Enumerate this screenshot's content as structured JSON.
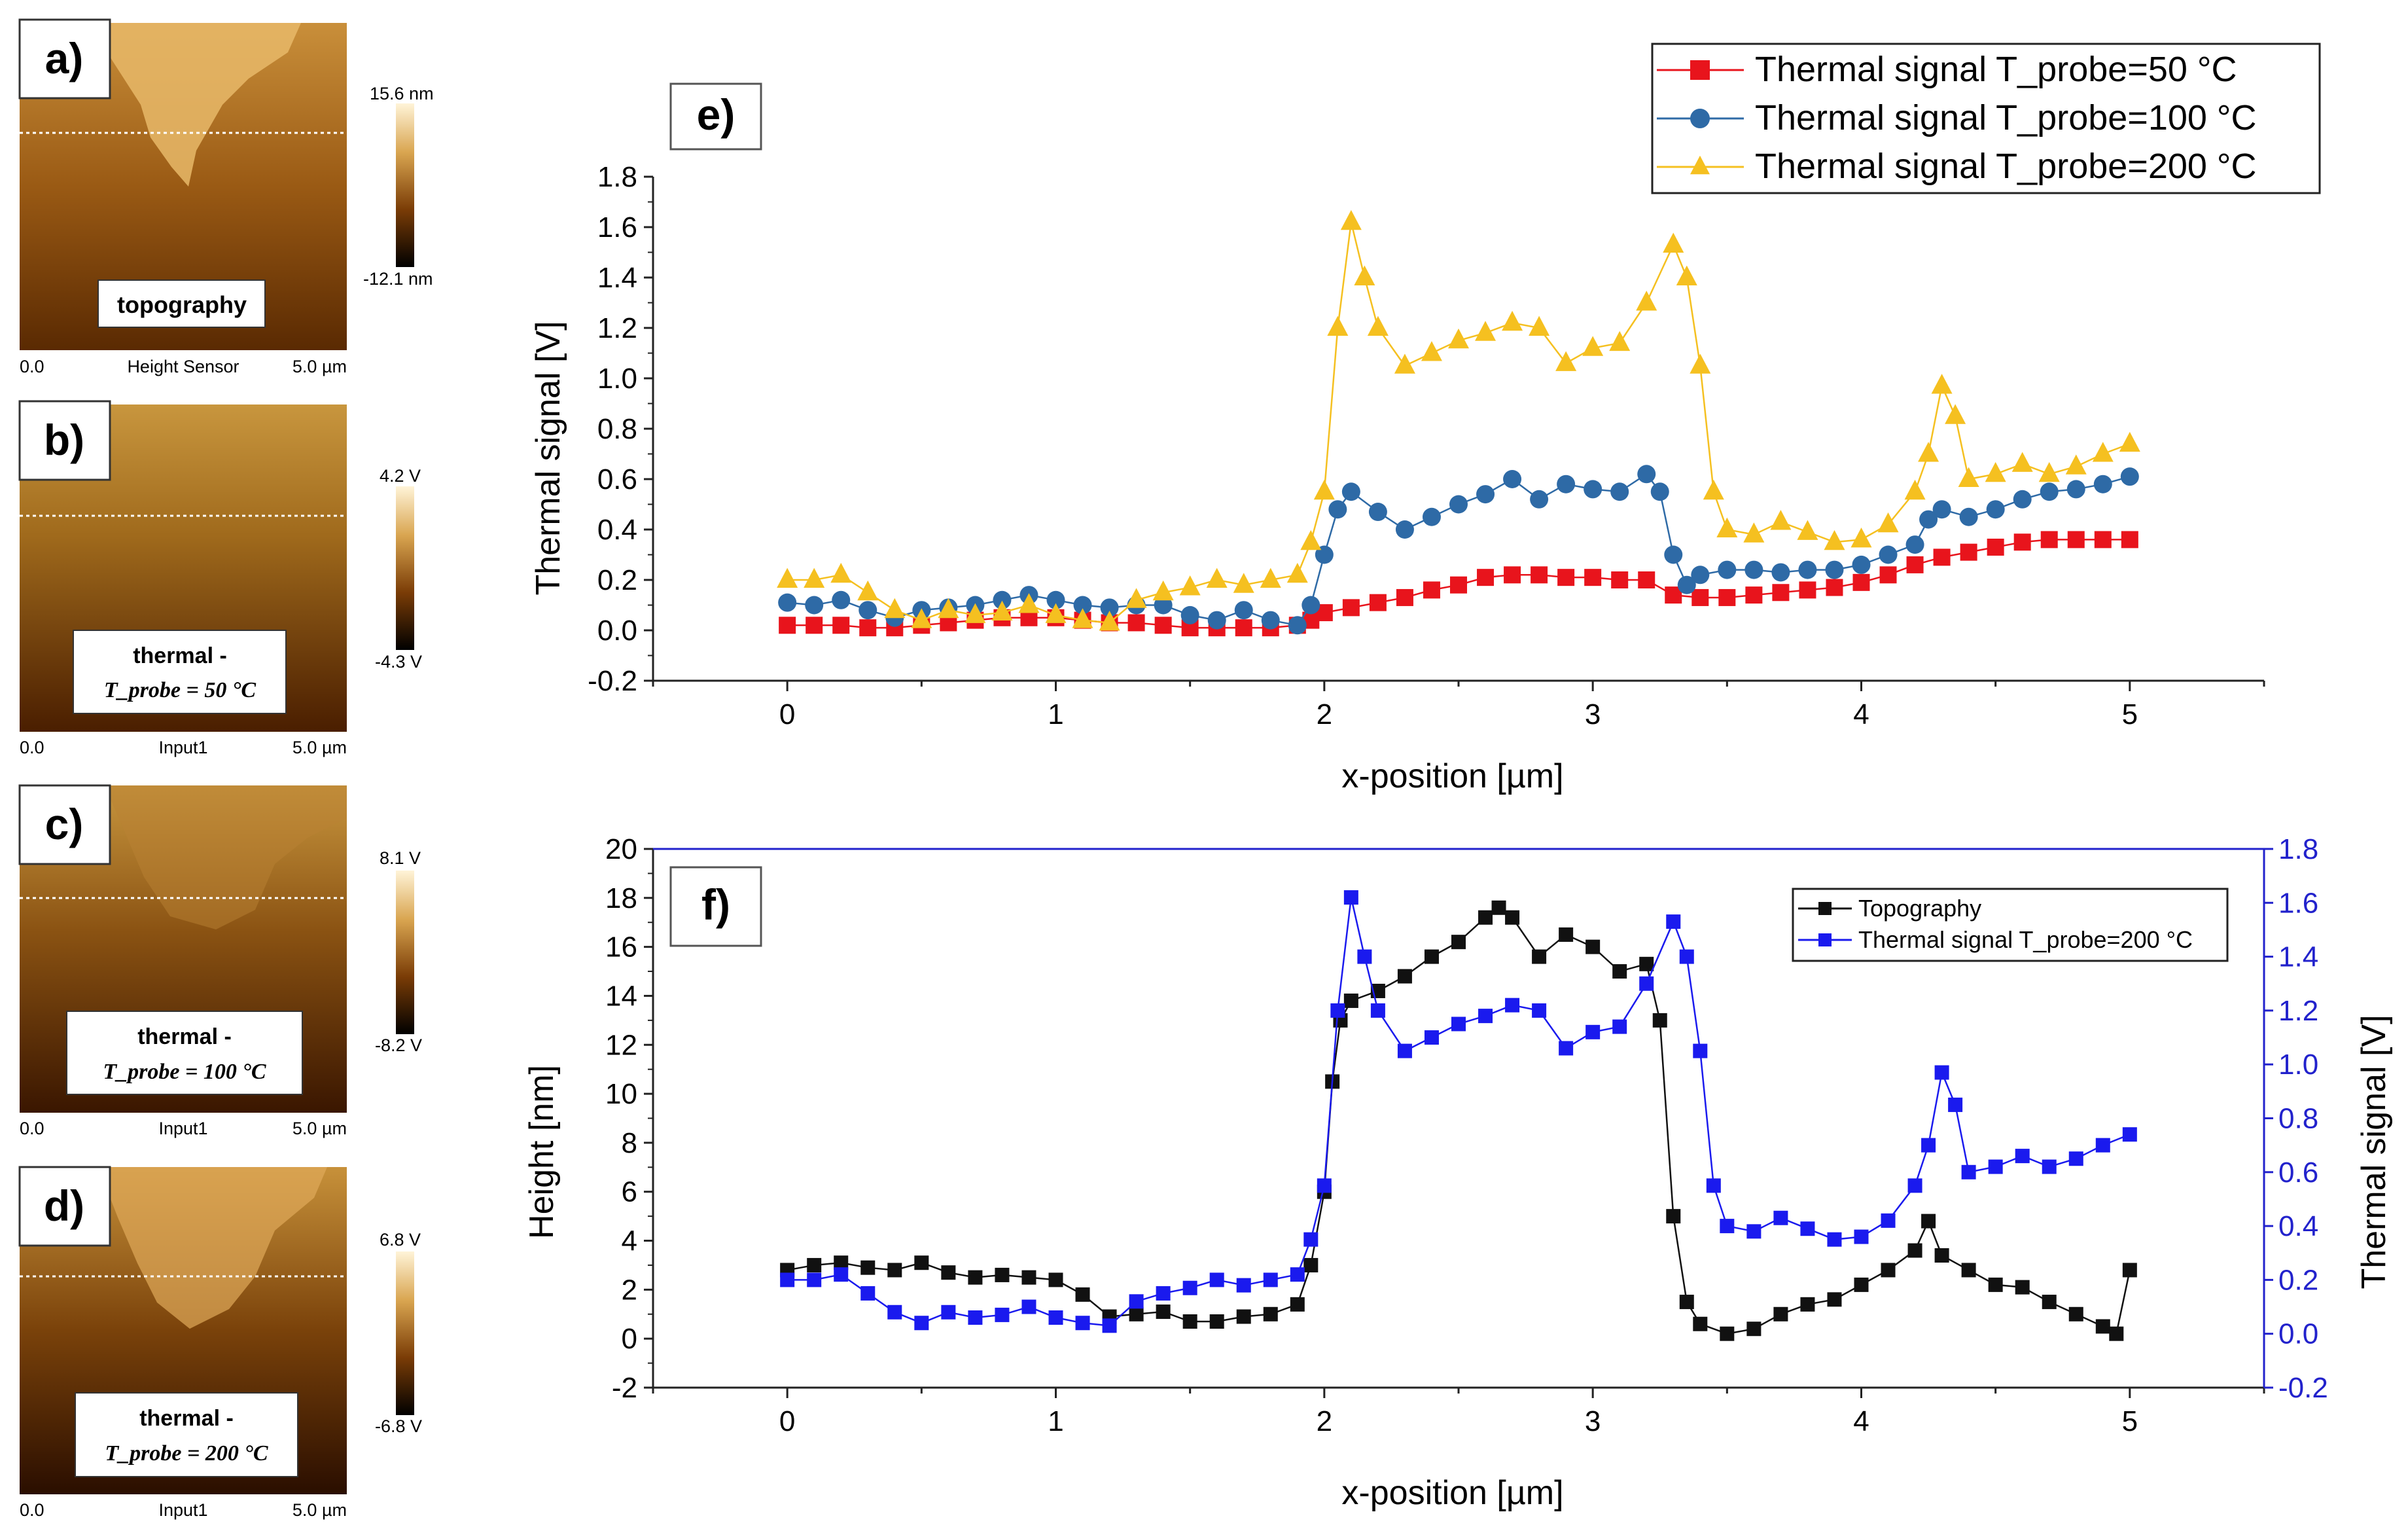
{
  "panels": {
    "a": {
      "label": "a)",
      "caption": "topography",
      "colorbar_max": "15.6 nm",
      "colorbar_min": "-12.1 nm",
      "axis_left": "0.0",
      "axis_mid": "Height Sensor",
      "axis_right": "5.0 µm"
    },
    "b": {
      "label": "b)",
      "caption_line1": "thermal -",
      "caption_line2": "T_probe = 50 °C",
      "colorbar_max": "4.2 V",
      "colorbar_min": "-4.3 V",
      "axis_left": "0.0",
      "axis_mid": "Input1",
      "axis_right": "5.0 µm"
    },
    "c": {
      "label": "c)",
      "caption_line1": "thermal -",
      "caption_line2": "T_probe = 100 °C",
      "colorbar_max": "8.1 V",
      "colorbar_min": "-8.2 V",
      "axis_left": "0.0",
      "axis_mid": "Input1",
      "axis_right": "5.0 µm"
    },
    "d": {
      "label": "d)",
      "caption_line1": "thermal -",
      "caption_line2": "T_probe = 200 °C",
      "colorbar_max": "6.8 V",
      "colorbar_min": "-6.8 V",
      "axis_left": "0.0",
      "axis_mid": "Input1",
      "axis_right": "5.0 µm"
    }
  },
  "colors": {
    "s50": "#e8141c",
    "s100": "#2e6aa6",
    "s200": "#f5c020",
    "topo": "#111111",
    "blue": "#1a1aee",
    "axis_right": "#2222cc"
  },
  "chart_data": [
    {
      "id": "e",
      "panel_label": "e)",
      "type": "scatter",
      "title": "",
      "xlabel": "x-position [µm]",
      "ylabel": "Thermal signal [V]",
      "xlim": [
        -0.5,
        5.5
      ],
      "ylim": [
        -0.2,
        1.8
      ],
      "xticks": [
        "0",
        "1",
        "2",
        "3",
        "4",
        "5"
      ],
      "yticks": [
        "-0.2",
        "0.0",
        "0.2",
        "0.4",
        "0.6",
        "0.8",
        "1.0",
        "1.2",
        "1.4",
        "1.6",
        "1.8"
      ],
      "legend": "top-right",
      "series": [
        {
          "name": "Thermal signal T_probe=50 °C",
          "marker": "square",
          "color": "#e8141c",
          "x": [
            0,
            0.1,
            0.2,
            0.3,
            0.4,
            0.5,
            0.6,
            0.7,
            0.8,
            0.9,
            1.0,
            1.1,
            1.2,
            1.3,
            1.4,
            1.5,
            1.6,
            1.7,
            1.8,
            1.9,
            1.95,
            2.0,
            2.1,
            2.2,
            2.3,
            2.4,
            2.5,
            2.6,
            2.7,
            2.8,
            2.9,
            3.0,
            3.1,
            3.2,
            3.3,
            3.4,
            3.5,
            3.6,
            3.7,
            3.8,
            3.9,
            4.0,
            4.1,
            4.2,
            4.3,
            4.4,
            4.5,
            4.6,
            4.7,
            4.8,
            4.9,
            5.0
          ],
          "y": [
            0.02,
            0.02,
            0.02,
            0.01,
            0.01,
            0.02,
            0.03,
            0.04,
            0.05,
            0.05,
            0.05,
            0.04,
            0.03,
            0.03,
            0.02,
            0.01,
            0.01,
            0.01,
            0.01,
            0.02,
            0.04,
            0.07,
            0.09,
            0.11,
            0.13,
            0.16,
            0.18,
            0.21,
            0.22,
            0.22,
            0.21,
            0.21,
            0.2,
            0.2,
            0.14,
            0.13,
            0.13,
            0.14,
            0.15,
            0.16,
            0.17,
            0.19,
            0.22,
            0.26,
            0.29,
            0.31,
            0.33,
            0.35,
            0.36,
            0.36,
            0.36,
            0.36
          ]
        },
        {
          "name": "Thermal signal T_probe=100 °C",
          "marker": "circle",
          "color": "#2e6aa6",
          "x": [
            0,
            0.1,
            0.2,
            0.3,
            0.4,
            0.5,
            0.6,
            0.7,
            0.8,
            0.9,
            1.0,
            1.1,
            1.2,
            1.3,
            1.4,
            1.5,
            1.6,
            1.7,
            1.8,
            1.9,
            1.95,
            2.0,
            2.05,
            2.1,
            2.2,
            2.3,
            2.4,
            2.5,
            2.6,
            2.7,
            2.8,
            2.9,
            3.0,
            3.1,
            3.2,
            3.25,
            3.3,
            3.35,
            3.4,
            3.5,
            3.6,
            3.7,
            3.8,
            3.9,
            4.0,
            4.1,
            4.2,
            4.25,
            4.3,
            4.4,
            4.5,
            4.6,
            4.7,
            4.8,
            4.9,
            5.0
          ],
          "y": [
            0.11,
            0.1,
            0.12,
            0.08,
            0.05,
            0.08,
            0.09,
            0.1,
            0.12,
            0.14,
            0.12,
            0.1,
            0.09,
            0.1,
            0.1,
            0.06,
            0.04,
            0.08,
            0.04,
            0.02,
            0.1,
            0.3,
            0.48,
            0.55,
            0.47,
            0.4,
            0.45,
            0.5,
            0.54,
            0.6,
            0.52,
            0.58,
            0.56,
            0.55,
            0.62,
            0.55,
            0.3,
            0.18,
            0.22,
            0.24,
            0.24,
            0.23,
            0.24,
            0.24,
            0.26,
            0.3,
            0.34,
            0.44,
            0.48,
            0.45,
            0.48,
            0.52,
            0.55,
            0.56,
            0.58,
            0.61
          ]
        },
        {
          "name": "Thermal signal T_probe=200 °C",
          "marker": "triangle",
          "color": "#f5c020",
          "x": [
            0,
            0.1,
            0.2,
            0.3,
            0.4,
            0.5,
            0.6,
            0.7,
            0.8,
            0.9,
            1.0,
            1.1,
            1.2,
            1.3,
            1.4,
            1.5,
            1.6,
            1.7,
            1.8,
            1.9,
            1.95,
            2.0,
            2.05,
            2.1,
            2.15,
            2.2,
            2.3,
            2.4,
            2.5,
            2.6,
            2.7,
            2.8,
            2.9,
            3.0,
            3.1,
            3.2,
            3.3,
            3.35,
            3.4,
            3.45,
            3.5,
            3.6,
            3.7,
            3.8,
            3.9,
            4.0,
            4.1,
            4.2,
            4.25,
            4.3,
            4.35,
            4.4,
            4.5,
            4.6,
            4.7,
            4.8,
            4.9,
            5.0
          ],
          "y": [
            0.2,
            0.2,
            0.22,
            0.15,
            0.08,
            0.04,
            0.08,
            0.06,
            0.07,
            0.1,
            0.06,
            0.04,
            0.03,
            0.12,
            0.15,
            0.17,
            0.2,
            0.18,
            0.2,
            0.22,
            0.35,
            0.55,
            1.2,
            1.62,
            1.4,
            1.2,
            1.05,
            1.1,
            1.15,
            1.18,
            1.22,
            1.2,
            1.06,
            1.12,
            1.14,
            1.3,
            1.53,
            1.4,
            1.05,
            0.55,
            0.4,
            0.38,
            0.43,
            0.39,
            0.35,
            0.36,
            0.42,
            0.55,
            0.7,
            0.97,
            0.85,
            0.6,
            0.62,
            0.66,
            0.62,
            0.65,
            0.7,
            0.74
          ]
        }
      ]
    },
    {
      "id": "f",
      "panel_label": "f)",
      "type": "scatter",
      "title": "",
      "xlabel": "x-position [µm]",
      "ylabel": "Height [nm]",
      "ylabel_right": "Thermal signal [V]",
      "xlim": [
        -0.5,
        5.5
      ],
      "ylim": [
        -2,
        20
      ],
      "ylim_right": [
        -0.2,
        1.8
      ],
      "xticks": [
        "0",
        "1",
        "2",
        "3",
        "4",
        "5"
      ],
      "yticks": [
        "-2",
        "0",
        "2",
        "4",
        "6",
        "8",
        "10",
        "12",
        "14",
        "16",
        "18",
        "20"
      ],
      "yticks_right": [
        "-0.2",
        "0.0",
        "0.2",
        "0.4",
        "0.6",
        "0.8",
        "1.0",
        "1.2",
        "1.4",
        "1.6",
        "1.8"
      ],
      "legend": "top-right",
      "series": [
        {
          "name": "Topography",
          "marker": "square",
          "color": "#111111",
          "axis": "left",
          "x": [
            0,
            0.1,
            0.2,
            0.3,
            0.4,
            0.5,
            0.6,
            0.7,
            0.8,
            0.9,
            1.0,
            1.1,
            1.2,
            1.3,
            1.4,
            1.5,
            1.6,
            1.7,
            1.8,
            1.9,
            1.95,
            2.0,
            2.03,
            2.06,
            2.1,
            2.2,
            2.3,
            2.4,
            2.5,
            2.6,
            2.65,
            2.7,
            2.8,
            2.9,
            3.0,
            3.1,
            3.2,
            3.25,
            3.3,
            3.35,
            3.4,
            3.5,
            3.6,
            3.7,
            3.8,
            3.9,
            4.0,
            4.1,
            4.2,
            4.25,
            4.3,
            4.4,
            4.5,
            4.6,
            4.7,
            4.8,
            4.9,
            4.95,
            5.0
          ],
          "y": [
            2.8,
            3.0,
            3.1,
            2.9,
            2.8,
            3.1,
            2.7,
            2.5,
            2.6,
            2.5,
            2.4,
            1.8,
            0.9,
            1.0,
            1.1,
            0.7,
            0.7,
            0.9,
            1.0,
            1.4,
            3.0,
            6.0,
            10.5,
            13.0,
            13.8,
            14.2,
            14.8,
            15.6,
            16.2,
            17.2,
            17.6,
            17.2,
            15.6,
            16.5,
            16.0,
            15.0,
            15.3,
            13.0,
            5.0,
            1.5,
            0.6,
            0.2,
            0.4,
            1.0,
            1.4,
            1.6,
            2.2,
            2.8,
            3.6,
            4.8,
            3.4,
            2.8,
            2.2,
            2.1,
            1.5,
            1.0,
            0.5,
            0.2,
            2.8
          ]
        },
        {
          "name": "Thermal signal T_probe=200 °C",
          "marker": "square",
          "color": "#1a1aee",
          "axis": "right",
          "x": [
            0,
            0.1,
            0.2,
            0.3,
            0.4,
            0.5,
            0.6,
            0.7,
            0.8,
            0.9,
            1.0,
            1.1,
            1.2,
            1.3,
            1.4,
            1.5,
            1.6,
            1.7,
            1.8,
            1.9,
            1.95,
            2.0,
            2.05,
            2.1,
            2.15,
            2.2,
            2.3,
            2.4,
            2.5,
            2.6,
            2.7,
            2.8,
            2.9,
            3.0,
            3.1,
            3.2,
            3.3,
            3.35,
            3.4,
            3.45,
            3.5,
            3.6,
            3.7,
            3.8,
            3.9,
            4.0,
            4.1,
            4.2,
            4.25,
            4.3,
            4.35,
            4.4,
            4.5,
            4.6,
            4.7,
            4.8,
            4.9,
            5.0
          ],
          "y": [
            0.2,
            0.2,
            0.22,
            0.15,
            0.08,
            0.04,
            0.08,
            0.06,
            0.07,
            0.1,
            0.06,
            0.04,
            0.03,
            0.12,
            0.15,
            0.17,
            0.2,
            0.18,
            0.2,
            0.22,
            0.35,
            0.55,
            1.2,
            1.62,
            1.4,
            1.2,
            1.05,
            1.1,
            1.15,
            1.18,
            1.22,
            1.2,
            1.06,
            1.12,
            1.14,
            1.3,
            1.53,
            1.4,
            1.05,
            0.55,
            0.4,
            0.38,
            0.43,
            0.39,
            0.35,
            0.36,
            0.42,
            0.55,
            0.7,
            0.97,
            0.85,
            0.6,
            0.62,
            0.66,
            0.62,
            0.65,
            0.7,
            0.74
          ]
        }
      ]
    }
  ]
}
